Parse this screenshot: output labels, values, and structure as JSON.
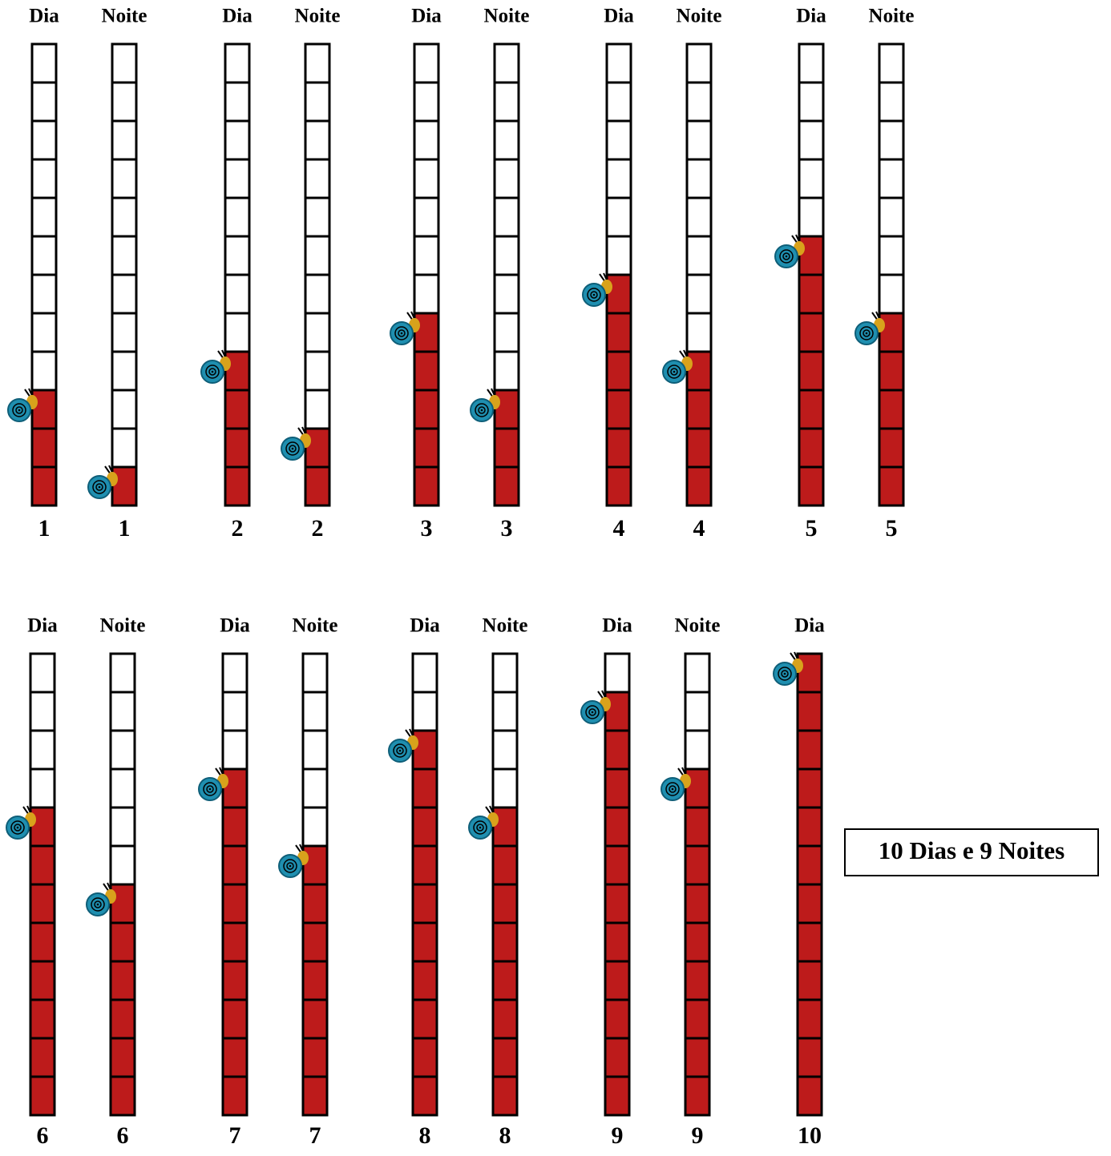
{
  "rows": [
    {
      "columns": [
        {
          "label": "Dia",
          "number": 1
        },
        {
          "label": "Noite",
          "number": 1
        },
        {
          "label": "Dia",
          "number": 2
        },
        {
          "label": "Noite",
          "number": 2
        },
        {
          "label": "Dia",
          "number": 3
        },
        {
          "label": "Noite",
          "number": 3
        },
        {
          "label": "Dia",
          "number": 4
        },
        {
          "label": "Noite",
          "number": 4
        },
        {
          "label": "Dia",
          "number": 5
        },
        {
          "label": "Noite",
          "number": 5
        }
      ]
    },
    {
      "columns": [
        {
          "label": "Dia",
          "number": 6
        },
        {
          "label": "Noite",
          "number": 6
        },
        {
          "label": "Dia",
          "number": 7
        },
        {
          "label": "Noite",
          "number": 7
        },
        {
          "label": "Dia",
          "number": 8
        },
        {
          "label": "Noite",
          "number": 8
        },
        {
          "label": "Dia",
          "number": 9
        },
        {
          "label": "Noite",
          "number": 9
        },
        {
          "label": "Dia",
          "number": 10
        }
      ]
    }
  ],
  "summary": "10 Dias e 9 Noites"
}
